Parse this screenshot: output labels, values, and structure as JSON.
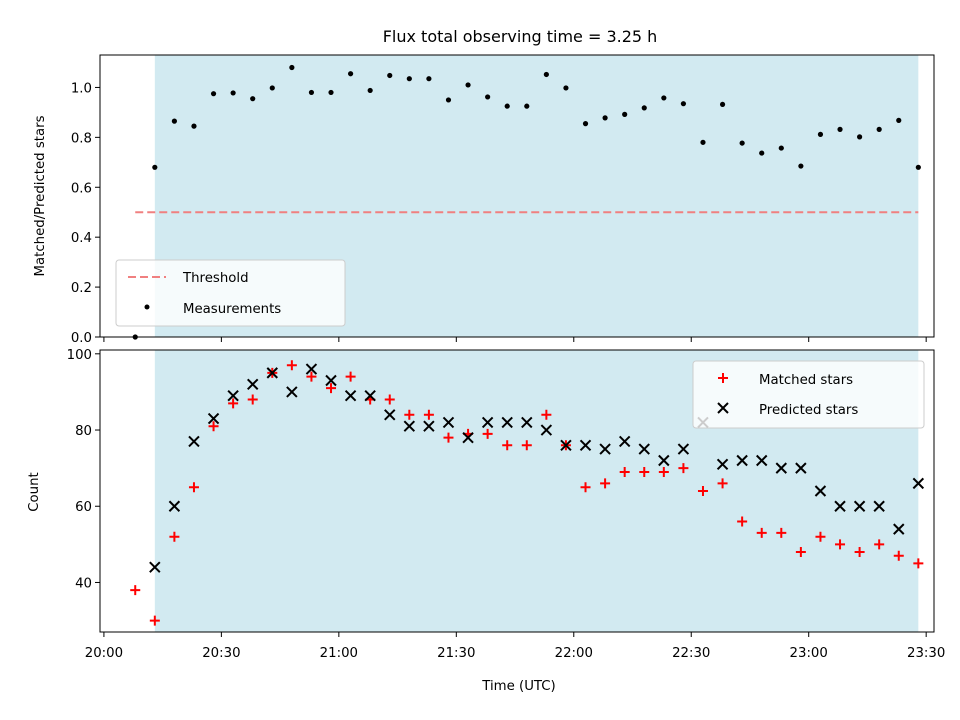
{
  "colors": {
    "observing_window": "#add8e6",
    "threshold": "#f08080",
    "measurements": "#000000",
    "matched": "#ff0000",
    "predicted": "#000000"
  },
  "chart_data": [
    {
      "type": "scatter",
      "title": "Flux total observing time = 3.25 h",
      "xlabel": "",
      "ylabel": "Matched/Predicted stars",
      "x_time_ticks": [
        "20:00",
        "20:30",
        "21:00",
        "21:30",
        "22:00",
        "22:30",
        "23:00",
        "23:30"
      ],
      "xlim": [
        "19:59",
        "23:32"
      ],
      "ylim": [
        0,
        1.13
      ],
      "yticks": [
        "0.0",
        "0.2",
        "0.4",
        "0.6",
        "0.8",
        "1.0"
      ],
      "grid": false,
      "legend_position": "lower-left",
      "observing_window": [
        "20:13",
        "23:28"
      ],
      "threshold": {
        "name": "Threshold",
        "y": 0.5,
        "x_range": [
          "20:08",
          "23:28"
        ]
      },
      "series": [
        {
          "name": "Measurements",
          "marker": "dot",
          "times": [
            "20:08",
            "20:13",
            "20:18",
            "20:23",
            "20:28",
            "20:33",
            "20:38",
            "20:43",
            "20:48",
            "20:53",
            "20:58",
            "21:03",
            "21:08",
            "21:13",
            "21:18",
            "21:23",
            "21:28",
            "21:33",
            "21:38",
            "21:43",
            "21:48",
            "21:53",
            "21:58",
            "22:03",
            "22:08",
            "22:13",
            "22:18",
            "22:23",
            "22:28",
            "22:33",
            "22:38",
            "22:43",
            "22:48",
            "22:53",
            "22:58",
            "23:03",
            "23:08",
            "23:13",
            "23:18",
            "23:23",
            "23:28"
          ],
          "values": [
            0.0,
            0.68,
            0.865,
            0.845,
            0.975,
            0.978,
            0.955,
            0.998,
            1.08,
            0.98,
            0.98,
            1.055,
            0.988,
            1.048,
            1.035,
            1.035,
            0.95,
            1.01,
            0.962,
            0.925,
            0.925,
            1.052,
            0.998,
            0.855,
            0.878,
            0.892,
            0.918,
            0.958,
            0.935,
            0.78,
            0.932,
            0.777,
            0.737,
            0.757,
            0.685,
            0.812,
            0.832,
            0.802,
            0.832,
            0.868,
            0.68
          ]
        }
      ]
    },
    {
      "type": "scatter",
      "title": "",
      "xlabel": "Time (UTC)",
      "ylabel": "Count",
      "x_time_ticks": [
        "20:00",
        "20:30",
        "21:00",
        "21:30",
        "22:00",
        "22:30",
        "23:00",
        "23:30"
      ],
      "xlim": [
        "19:59",
        "23:32"
      ],
      "ylim": [
        27,
        101
      ],
      "yticks": [
        "40",
        "60",
        "80",
        "100"
      ],
      "grid": false,
      "legend_position": "upper-right",
      "observing_window": [
        "20:13",
        "23:28"
      ],
      "series": [
        {
          "name": "Matched stars",
          "marker": "plus",
          "times": [
            "20:08",
            "20:13",
            "20:18",
            "20:23",
            "20:28",
            "20:33",
            "20:38",
            "20:43",
            "20:48",
            "20:53",
            "20:58",
            "21:03",
            "21:08",
            "21:13",
            "21:18",
            "21:23",
            "21:28",
            "21:33",
            "21:38",
            "21:43",
            "21:48",
            "21:53",
            "21:58",
            "22:03",
            "22:08",
            "22:13",
            "22:18",
            "22:23",
            "22:28",
            "22:33",
            "22:38",
            "22:43",
            "22:48",
            "22:53",
            "22:58",
            "23:03",
            "23:08",
            "23:13",
            "23:18",
            "23:23",
            "23:28"
          ],
          "values": [
            38,
            30,
            52,
            65,
            81,
            87,
            88,
            95,
            97,
            94,
            91,
            94,
            88,
            88,
            84,
            84,
            78,
            79,
            79,
            76,
            76,
            84,
            76,
            65,
            66,
            69,
            69,
            69,
            70,
            64,
            66,
            56,
            53,
            53,
            48,
            52,
            50,
            48,
            50,
            47,
            45
          ]
        },
        {
          "name": "Predicted stars",
          "marker": "x",
          "times": [
            "20:13",
            "20:18",
            "20:23",
            "20:28",
            "20:33",
            "20:38",
            "20:43",
            "20:48",
            "20:53",
            "20:58",
            "21:03",
            "21:08",
            "21:13",
            "21:18",
            "21:23",
            "21:28",
            "21:33",
            "21:38",
            "21:43",
            "21:48",
            "21:53",
            "21:58",
            "22:03",
            "22:08",
            "22:13",
            "22:18",
            "22:23",
            "22:28",
            "22:33",
            "22:38",
            "22:43",
            "22:48",
            "22:53",
            "22:58",
            "23:03",
            "23:08",
            "23:13",
            "23:18",
            "23:23",
            "23:28"
          ],
          "values": [
            44,
            60,
            77,
            83,
            89,
            92,
            95,
            90,
            96,
            93,
            89,
            89,
            84,
            81,
            81,
            82,
            78,
            82,
            82,
            82,
            80,
            76,
            76,
            75,
            77,
            75,
            72,
            75,
            82,
            71,
            72,
            72,
            70,
            70,
            64,
            60,
            60,
            60,
            54,
            66
          ]
        }
      ]
    }
  ]
}
